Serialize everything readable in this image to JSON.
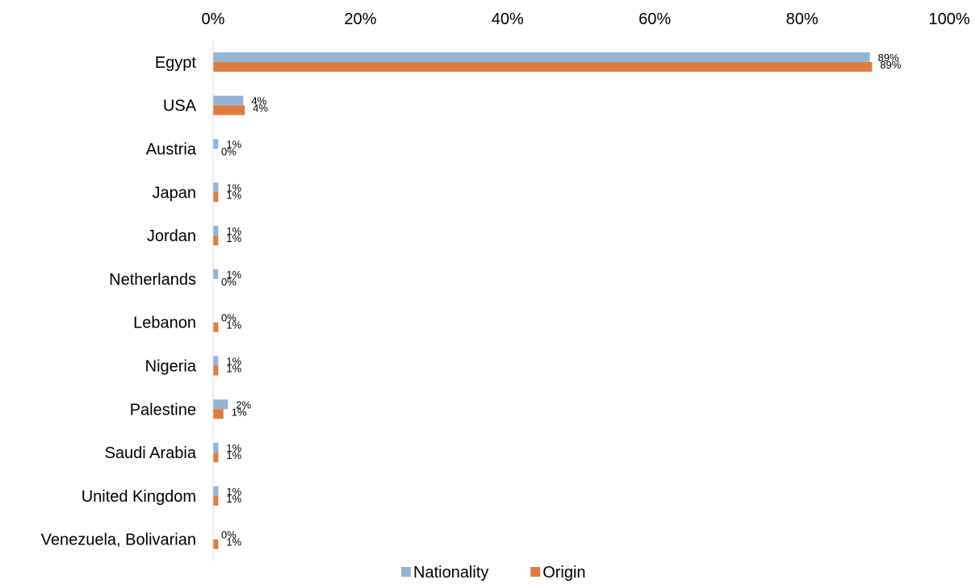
{
  "chart_data": {
    "type": "bar",
    "orientation": "horizontal",
    "categories": [
      "Egypt",
      "USA",
      "Austria",
      "Japan",
      "Jordan",
      "Netherlands",
      "Lebanon",
      "Nigeria",
      "Palestine",
      "Saudi Arabia",
      "United Kingdom",
      "Venezuela, Bolivarian"
    ],
    "series": [
      {
        "name": "Nationality",
        "color": "#95B3D7",
        "values": [
          0.892,
          0.041,
          0.007,
          0.007,
          0.007,
          0.007,
          0.0,
          0.007,
          0.02,
          0.007,
          0.007,
          0.0
        ],
        "labels": [
          "89%",
          "4%",
          "1%",
          "1%",
          "1%",
          "1%",
          "0%",
          "1%",
          "2%",
          "1%",
          "1%",
          "0%"
        ]
      },
      {
        "name": "Origin",
        "color": "#E07B3F",
        "values": [
          0.895,
          0.043,
          0.0,
          0.007,
          0.007,
          0.0,
          0.007,
          0.007,
          0.014,
          0.007,
          0.007,
          0.007
        ],
        "labels": [
          "89%",
          "4%",
          "0%",
          "1%",
          "1%",
          "0%",
          "1%",
          "1%",
          "1%",
          "1%",
          "1%",
          "1%"
        ]
      }
    ],
    "xlim": [
      0,
      1
    ],
    "tick_labels": [
      "0%",
      "20%",
      "40%",
      "60%",
      "80%",
      "100%"
    ],
    "xaxis_position": "top",
    "legend": {
      "position": "bottom",
      "entries": [
        "Nationality",
        "Origin"
      ]
    },
    "grid": false
  }
}
